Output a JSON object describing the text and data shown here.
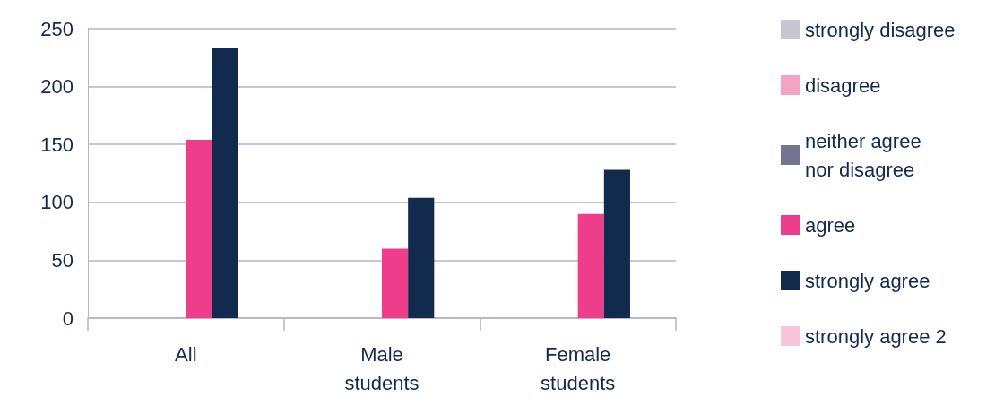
{
  "chart_data": {
    "type": "bar",
    "categories": [
      "All",
      "Male\nstudents",
      "Female\nstudents"
    ],
    "series": [
      {
        "name": "strongly disagree",
        "color": "#c6c6d2",
        "values": [
          0,
          0,
          0
        ]
      },
      {
        "name": "disagree",
        "color": "#f4a3c3",
        "values": [
          0,
          0,
          0
        ]
      },
      {
        "name": "neither agree\nnor disagree",
        "color": "#747490",
        "values": [
          0,
          0,
          0
        ]
      },
      {
        "name": "agree",
        "color": "#ee3d8b",
        "values": [
          154,
          60,
          90
        ]
      },
      {
        "name": "strongly agree",
        "color": "#122a4e",
        "values": [
          233,
          104,
          128
        ]
      },
      {
        "name": "strongly agree 2",
        "color": "#f8c6d8",
        "values": [
          0,
          0,
          0
        ]
      }
    ],
    "ylim": [
      0,
      250
    ],
    "yticks": [
      0,
      50,
      100,
      150,
      200,
      250
    ],
    "grid": "y",
    "legend": "right"
  }
}
